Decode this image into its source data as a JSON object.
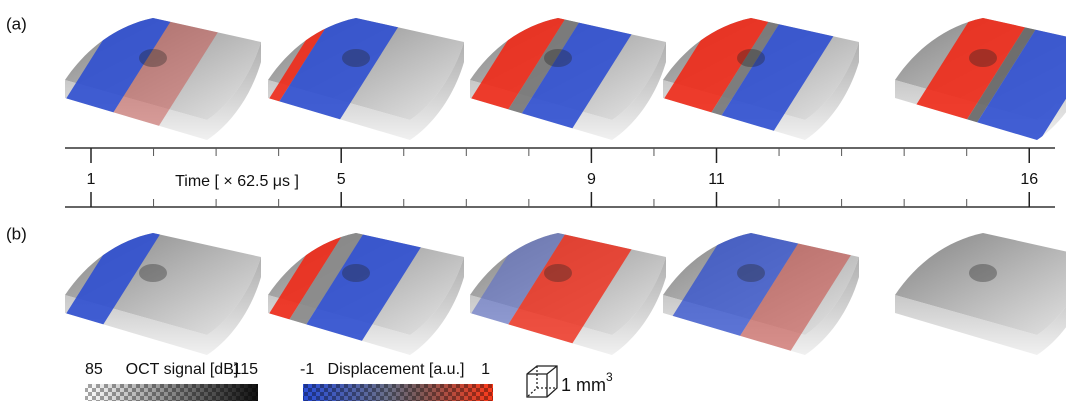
{
  "panels": [
    {
      "label": "(a)"
    },
    {
      "label": "(b)"
    }
  ],
  "timeline": {
    "label": "Time [ × 62.5 μs ]",
    "ticks": [
      1,
      5,
      9,
      11,
      16
    ]
  },
  "colorbars": [
    {
      "min": 85,
      "title": "OCT signal [dB]",
      "max": 115
    },
    {
      "min": -1,
      "title": "Displacement [a.u.]",
      "max": 1
    }
  ],
  "scale_bar": {
    "label": "1 mm",
    "superscript": "3"
  }
}
